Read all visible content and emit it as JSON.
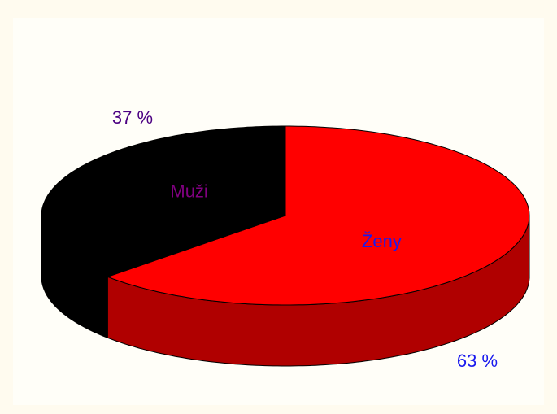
{
  "chart_data": {
    "type": "pie3d",
    "categories": [
      "Ženy",
      "Muži"
    ],
    "values": [
      63,
      37
    ],
    "value_labels": [
      "63 %",
      "37 %"
    ],
    "colors": [
      "#ff0000",
      "#000000"
    ],
    "side_colors": [
      "#b00000",
      "#000000"
    ]
  }
}
